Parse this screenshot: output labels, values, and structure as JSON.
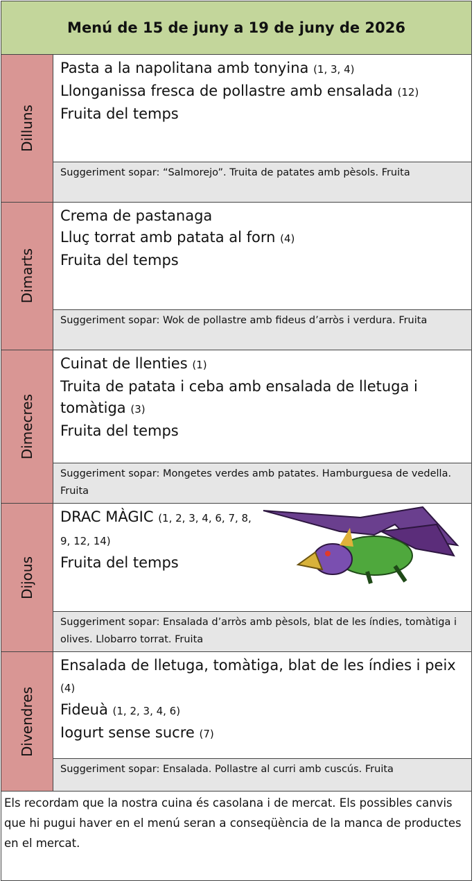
{
  "header": {
    "title": "Menú de 15 de juny a 19 de juny de 2026"
  },
  "days": [
    {
      "name": "Dilluns",
      "dishes": [
        {
          "name": "Pasta a la napolitana amb tonyina",
          "allergens": "(1, 3, 4)"
        },
        {
          "name": "Llonganissa fresca de pollastre amb ensalada",
          "allergens": "(12)"
        },
        {
          "name": "Fruita del temps"
        }
      ],
      "suggestion": "Suggeriment sopar: “Salmorejo”. Truita de patates amb pèsols. Fruita"
    },
    {
      "name": "Dimarts",
      "dishes": [
        {
          "name": "Crema de pastanaga"
        },
        {
          "name": "Lluç torrat amb patata al forn",
          "allergens": "(4)"
        },
        {
          "name": "Fruita del temps"
        }
      ],
      "suggestion": "Suggeriment sopar: Wok de pollastre amb fideus d’arròs i verdura. Fruita"
    },
    {
      "name": "Dimecres",
      "dishes": [
        {
          "name": "Cuinat de llenties",
          "allergens": "(1)"
        },
        {
          "name": "Truita de patata i ceba amb ensalada de lletuga i tomàtiga",
          "allergens": "(3)"
        },
        {
          "name": "Fruita del temps"
        }
      ],
      "suggestion": "Suggeriment sopar: Mongetes verdes amb patates. Hamburguesa de vedella. Fruita"
    },
    {
      "name": "Dijous",
      "dishes": [
        {
          "name": "DRAC MÀGIC",
          "allergens": "(1, 2, 3, 4, 6, 7, 8, 9, 12, 14)"
        },
        {
          "name": "Fruita del temps"
        }
      ],
      "suggestion": "Suggeriment sopar: Ensalada d’arròs amb pèsols, blat de les índies, tomàtiga i olives. Llobarro torrat. Fruita"
    },
    {
      "name": "Divendres",
      "dishes": [
        {
          "name": "Ensalada de lletuga, tomàtiga, blat de les índies i peix",
          "allergens": "(4)"
        },
        {
          "name": "Fideuà",
          "allergens": "(1, 2, 3, 4, 6)"
        },
        {
          "name": "Iogurt sense sucre",
          "allergens": "(7)"
        }
      ],
      "suggestion": "Suggeriment sopar: Ensalada. Pollastre al curri amb cuscús. Fruita"
    }
  ],
  "footer": {
    "text": "Els recordam que la nostra cuina és casolana i de mercat. Els possibles canvis que hi pugui haver en el menú seran a conseqüència de la manca de productes en el mercat."
  }
}
